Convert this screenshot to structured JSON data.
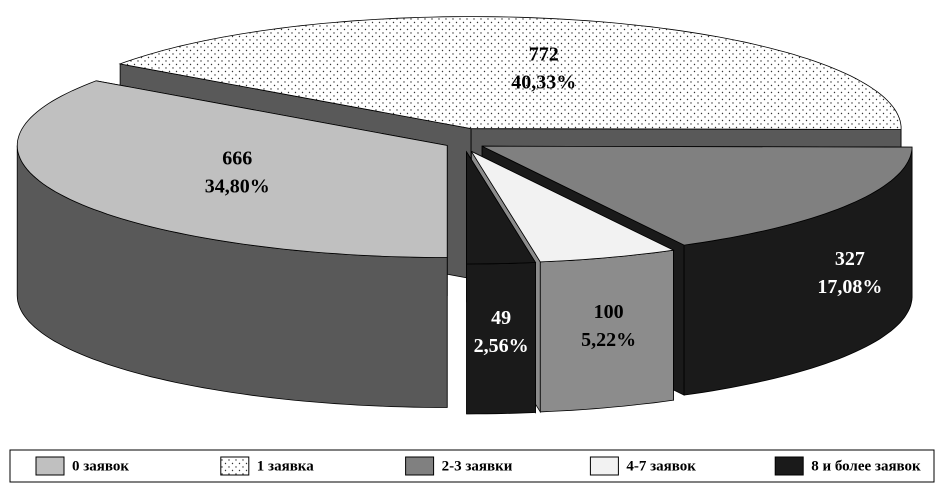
{
  "chart_data": {
    "type": "pie3d",
    "categories": [
      "0 заявок",
      "1 заявка",
      "2-3 заявки",
      "4-7 заявок",
      "8 и более заявок"
    ],
    "values": [
      666,
      772,
      327,
      100,
      49
    ],
    "percentages": [
      34.8,
      40.33,
      17.08,
      5.22,
      2.56
    ],
    "percentage_labels": [
      "34,80%",
      "40,33%",
      "17,08%",
      "5,22%",
      "2,56%"
    ],
    "colors": [
      "#c0c0c0",
      "#ffffff",
      "#808080",
      "#f2f2f2",
      "#1a1a1a"
    ],
    "side_colors": [
      "#595959",
      "#595959",
      "#1a1a1a",
      "#8c8c8c",
      "#1a1a1a"
    ],
    "patterns": [
      null,
      "dots",
      null,
      null,
      null
    ],
    "legend": "bottom"
  }
}
